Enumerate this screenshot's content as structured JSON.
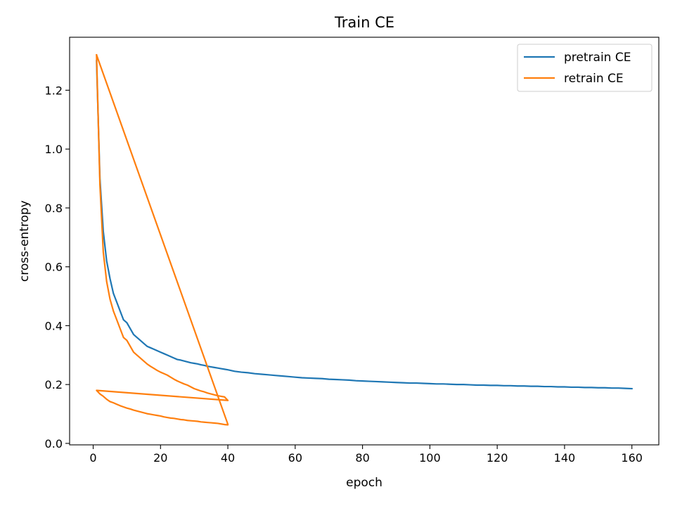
{
  "chart_data": {
    "type": "line",
    "title": "Train CE",
    "xlabel": "epoch",
    "ylabel": "cross-entropy",
    "xlim": [
      -7,
      168
    ],
    "ylim": [
      -0.005,
      1.38
    ],
    "xticks": [
      0,
      20,
      40,
      60,
      80,
      100,
      120,
      140,
      160
    ],
    "yticks": [
      0.0,
      0.2,
      0.4,
      0.6,
      0.8,
      1.0,
      1.2
    ],
    "ytick_labels": [
      "0.0",
      "0.2",
      "0.4",
      "0.6",
      "0.8",
      "1.0",
      "1.2"
    ],
    "grid": false,
    "legend_position": "top-right",
    "series": [
      {
        "name": "pretrain CE",
        "color": "#1f77b4",
        "x": [
          1,
          2,
          3,
          4,
          5,
          6,
          7,
          8,
          9,
          10,
          11,
          12,
          13,
          14,
          15,
          16,
          17,
          18,
          19,
          20,
          21,
          22,
          23,
          24,
          25,
          26,
          27,
          28,
          29,
          30,
          31,
          32,
          33,
          34,
          35,
          36,
          37,
          38,
          39,
          40,
          42,
          44,
          46,
          48,
          50,
          52,
          54,
          56,
          58,
          60,
          62,
          64,
          66,
          68,
          70,
          72,
          74,
          76,
          78,
          80,
          82,
          84,
          86,
          88,
          90,
          92,
          94,
          96,
          98,
          100,
          102,
          104,
          106,
          108,
          110,
          112,
          114,
          116,
          118,
          120,
          122,
          124,
          126,
          128,
          130,
          132,
          134,
          136,
          138,
          140,
          142,
          144,
          146,
          148,
          150,
          152,
          154,
          156,
          158,
          160
        ],
        "y": [
          1.3,
          0.9,
          0.72,
          0.62,
          0.56,
          0.51,
          0.48,
          0.45,
          0.42,
          0.41,
          0.39,
          0.37,
          0.36,
          0.35,
          0.34,
          0.33,
          0.325,
          0.32,
          0.315,
          0.31,
          0.305,
          0.3,
          0.295,
          0.29,
          0.285,
          0.283,
          0.28,
          0.277,
          0.274,
          0.272,
          0.27,
          0.267,
          0.265,
          0.262,
          0.26,
          0.258,
          0.256,
          0.254,
          0.252,
          0.25,
          0.245,
          0.242,
          0.24,
          0.237,
          0.235,
          0.233,
          0.231,
          0.229,
          0.227,
          0.225,
          0.223,
          0.222,
          0.221,
          0.22,
          0.218,
          0.217,
          0.216,
          0.215,
          0.213,
          0.212,
          0.211,
          0.21,
          0.209,
          0.208,
          0.207,
          0.206,
          0.205,
          0.205,
          0.204,
          0.203,
          0.202,
          0.202,
          0.201,
          0.2,
          0.2,
          0.199,
          0.198,
          0.198,
          0.197,
          0.197,
          0.196,
          0.196,
          0.195,
          0.195,
          0.194,
          0.194,
          0.193,
          0.193,
          0.192,
          0.192,
          0.191,
          0.191,
          0.19,
          0.19,
          0.189,
          0.189,
          0.188,
          0.188,
          0.187,
          0.186
        ]
      },
      {
        "name": "retrain CE",
        "color": "#ff7f0e",
        "x": [
          1,
          2,
          3,
          4,
          5,
          6,
          7,
          8,
          9,
          10,
          11,
          12,
          13,
          14,
          15,
          16,
          17,
          18,
          19,
          20,
          21,
          22,
          23,
          24,
          25,
          26,
          27,
          28,
          29,
          30,
          31,
          32,
          33,
          34,
          35,
          36,
          37,
          38,
          39,
          40,
          1,
          2,
          3,
          4,
          5,
          6,
          7,
          8,
          9,
          10,
          11,
          12,
          13,
          14,
          15,
          16,
          17,
          18,
          19,
          20,
          21,
          22,
          23,
          24,
          25,
          26,
          27,
          28,
          29,
          30,
          31,
          32,
          33,
          34,
          35,
          36,
          37,
          38,
          39,
          40,
          40,
          1
        ],
        "y": [
          1.32,
          0.88,
          0.65,
          0.55,
          0.49,
          0.45,
          0.42,
          0.39,
          0.36,
          0.35,
          0.33,
          0.31,
          0.3,
          0.29,
          0.28,
          0.27,
          0.262,
          0.255,
          0.248,
          0.242,
          0.237,
          0.232,
          0.225,
          0.218,
          0.212,
          0.207,
          0.202,
          0.198,
          0.192,
          0.186,
          0.182,
          0.178,
          0.175,
          0.171,
          0.168,
          0.165,
          0.162,
          0.16,
          0.158,
          0.146,
          0.18,
          0.168,
          0.16,
          0.15,
          0.142,
          0.138,
          0.133,
          0.128,
          0.124,
          0.12,
          0.117,
          0.113,
          0.11,
          0.107,
          0.104,
          0.101,
          0.099,
          0.097,
          0.095,
          0.093,
          0.09,
          0.088,
          0.086,
          0.085,
          0.083,
          0.081,
          0.08,
          0.078,
          0.077,
          0.076,
          0.075,
          0.073,
          0.072,
          0.071,
          0.07,
          0.069,
          0.068,
          0.066,
          0.064,
          0.063,
          0.065,
          1.32
        ]
      }
    ]
  }
}
